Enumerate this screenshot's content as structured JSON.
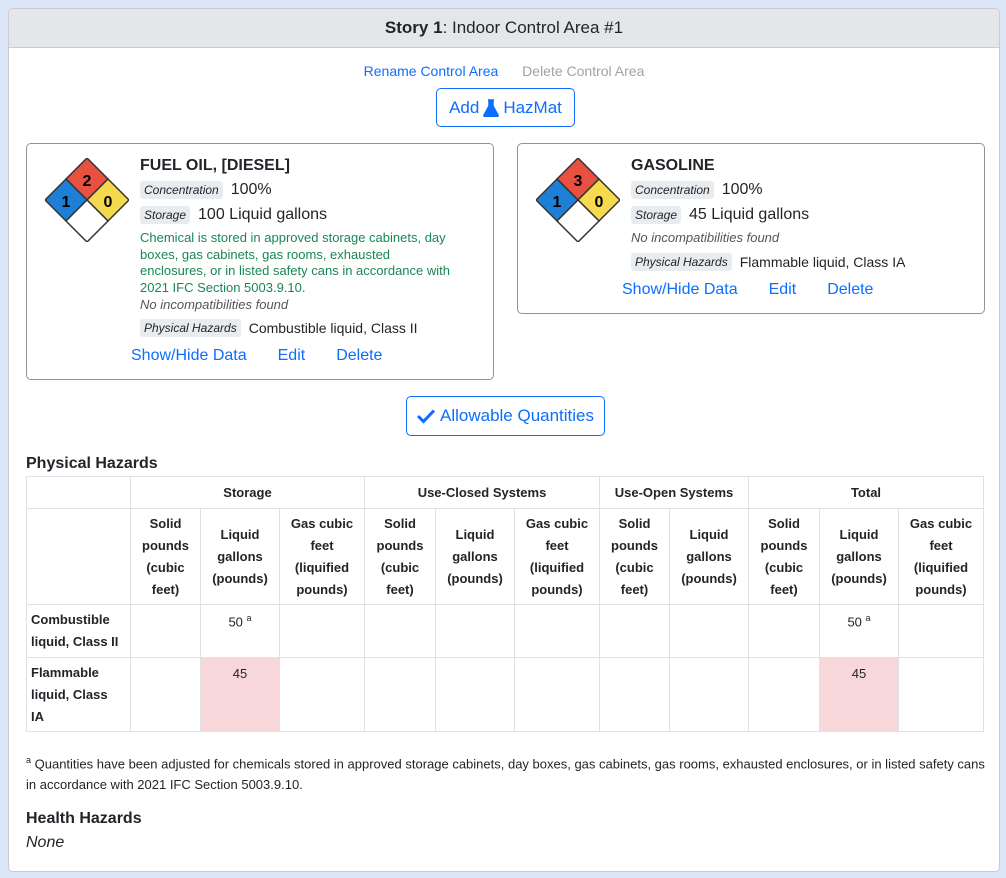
{
  "header": {
    "story": "Story 1",
    "area": ": Indoor Control Area #1"
  },
  "links": {
    "rename": "Rename Control Area",
    "delete": "Delete Control Area"
  },
  "add_button": {
    "label_pre": "Add",
    "label_post": "HazMat",
    "icon": "flask-icon"
  },
  "chemicals": [
    {
      "name": "FUEL OIL, [DIESEL]",
      "nfpa": {
        "health": "1",
        "flammability": "2",
        "instability": "0",
        "special": ""
      },
      "concentration_label": "Concentration",
      "concentration": "100%",
      "storage_label": "Storage",
      "storage": "100 Liquid gallons",
      "note": "Chemical is stored in approved storage cabinets, day boxes, gas cabinets, gas rooms, exhausted enclosures, or in listed safety cans in accordance with 2021 IFC Section 5003.9.10.",
      "incompat": "No incompatibilities found",
      "phys_label": "Physical Hazards",
      "phys": "Combustible liquid, Class II",
      "actions": {
        "show": "Show/Hide Data",
        "edit": "Edit",
        "delete": "Delete"
      }
    },
    {
      "name": "GASOLINE",
      "nfpa": {
        "health": "1",
        "flammability": "3",
        "instability": "0",
        "special": ""
      },
      "concentration_label": "Concentration",
      "concentration": "100%",
      "storage_label": "Storage",
      "storage": "45 Liquid gallons",
      "incompat": "No incompatibilities found",
      "phys_label": "Physical Hazards",
      "phys": "Flammable liquid, Class IA",
      "actions": {
        "show": "Show/Hide Data",
        "edit": "Edit",
        "delete": "Delete"
      }
    }
  ],
  "allowable_button": {
    "label": "Allowable Quantities",
    "icon": "check-icon"
  },
  "physical_section": {
    "title": "Physical Hazards",
    "groups": [
      "Storage",
      "Use-Closed Systems",
      "Use-Open Systems",
      "Total"
    ],
    "cols": {
      "solid": [
        "Solid",
        "pounds",
        "(cubic",
        "feet)"
      ],
      "liquid": [
        "Liquid",
        "gallons",
        "(pounds)"
      ],
      "gas": [
        "Gas cubic",
        "feet",
        "(liquified",
        "pounds)"
      ]
    },
    "rows": [
      {
        "name": [
          "Combustible",
          "liquid, Class II"
        ],
        "storage_liquid": "50",
        "storage_sup": "a",
        "total_liquid": "50",
        "total_sup": "a"
      },
      {
        "name": [
          "Flammable",
          "liquid, Class",
          "IA"
        ],
        "storage_liquid": "45",
        "storage_sup": "",
        "total_liquid": "45",
        "total_sup": ""
      }
    ],
    "footnote_mark": "a",
    "footnote": " Quantities have been adjusted for chemicals stored in approved storage cabinets, day boxes, gas cabinets, gas rooms, exhausted enclosures, or in listed safety cans in accordance with 2021 IFC Section 5003.9.10."
  },
  "health_section": {
    "title": "Health Hazards",
    "none": "None"
  },
  "colors": {
    "health": "#1e7fd6",
    "flammability": "#e8513f",
    "instability": "#f5d94e",
    "special": "#ffffff",
    "link": "#0d6efd",
    "note": "#198754",
    "highlight": "#f8d7da"
  }
}
